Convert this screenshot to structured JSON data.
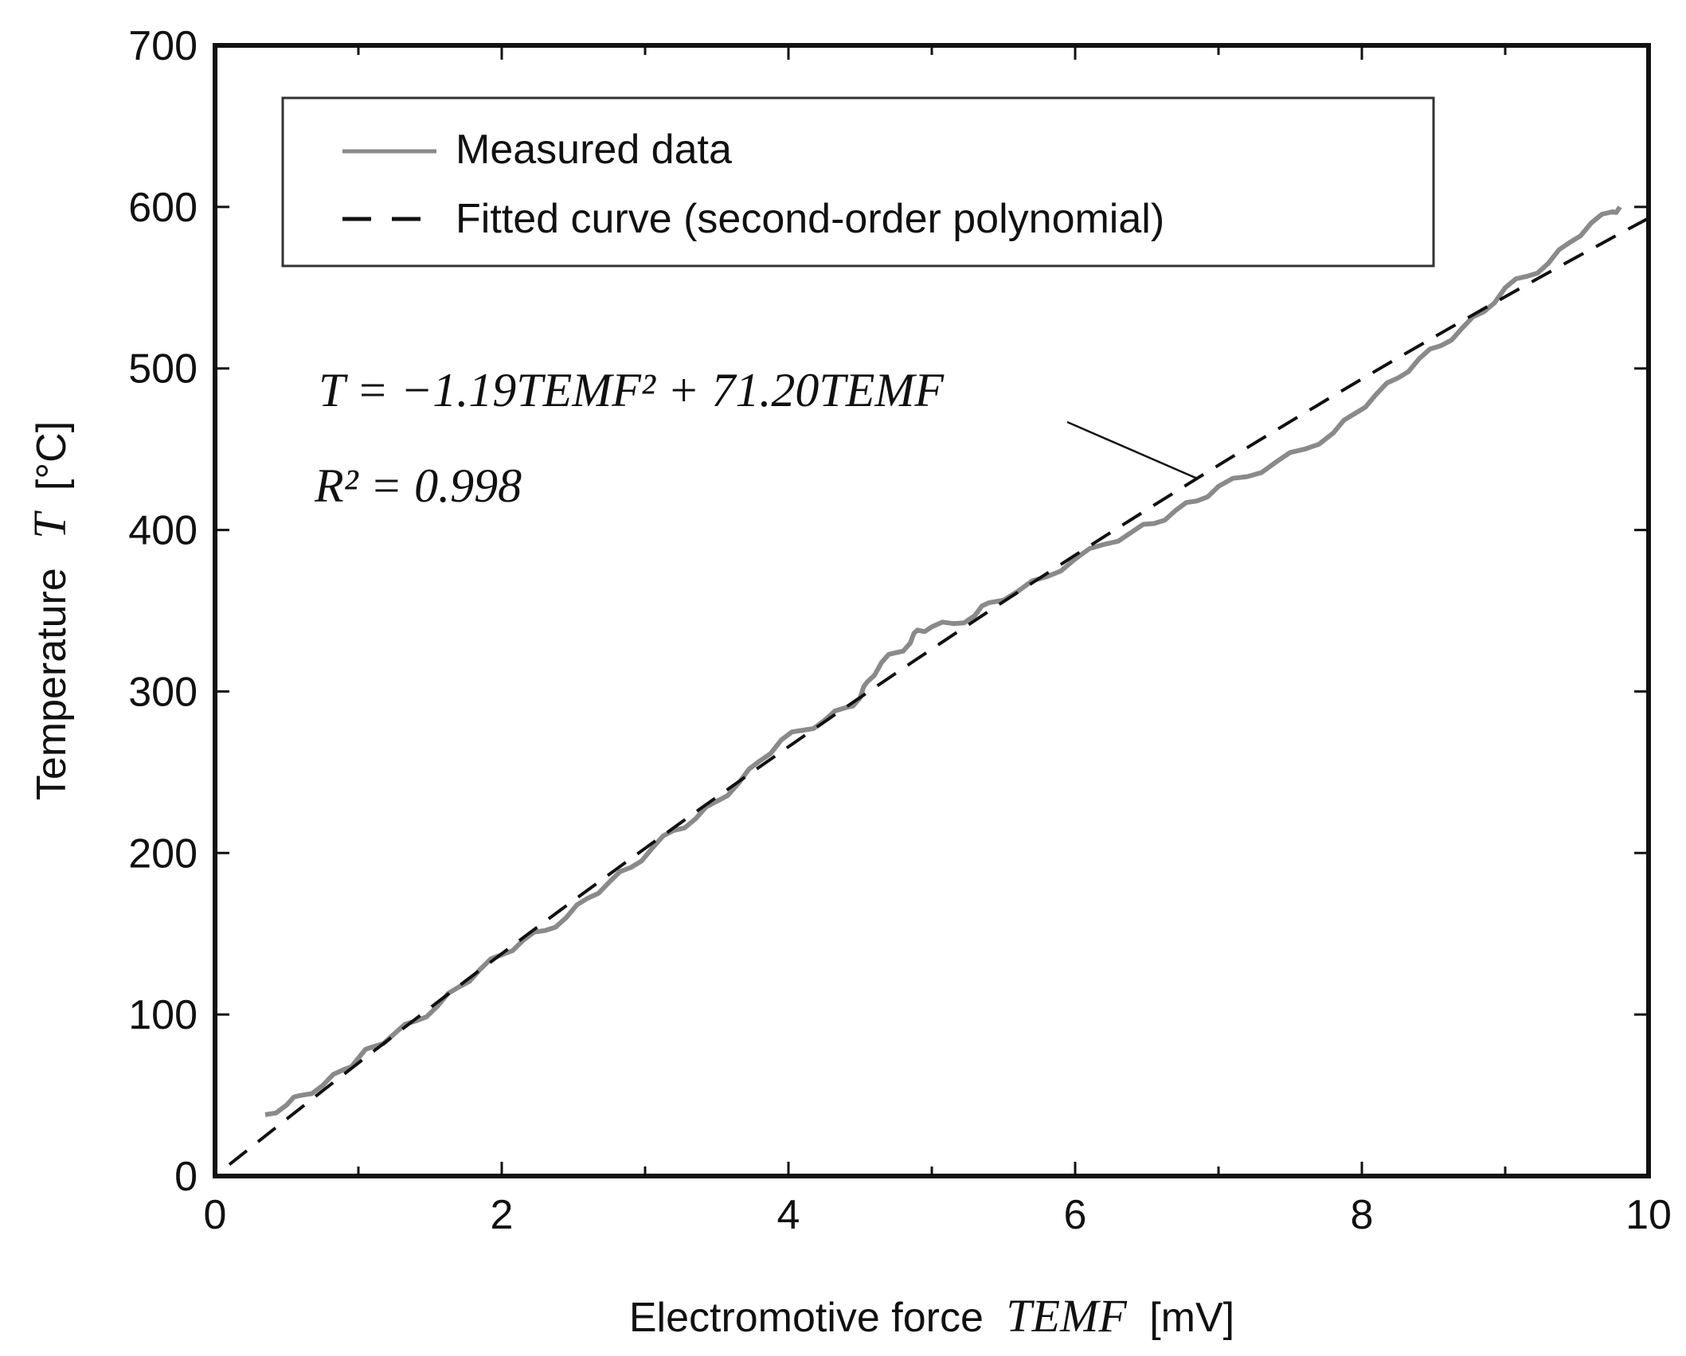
{
  "chart_data": {
    "type": "line",
    "title": "",
    "xlabel_prefix": "Electromotive force",
    "xlabel_var": "TEMF",
    "xlabel_unit": "[mV]",
    "ylabel_prefix": "Temperature",
    "ylabel_var": "T",
    "ylabel_unit": "[°C]",
    "xlim": [
      0,
      10
    ],
    "ylim": [
      0,
      700
    ],
    "xticks": [
      0,
      2,
      4,
      6,
      8,
      10
    ],
    "yticks": [
      0,
      100,
      200,
      300,
      400,
      500,
      600,
      700
    ],
    "grid": false,
    "legend_position": "top-left",
    "series": [
      {
        "name": "Measured data",
        "style": "solid",
        "color": "#8a8a8a",
        "points": [
          [
            0.35,
            38
          ],
          [
            0.5,
            44
          ],
          [
            0.6,
            50
          ],
          [
            0.75,
            56
          ],
          [
            0.9,
            66
          ],
          [
            1.0,
            73
          ],
          [
            1.1,
            80
          ],
          [
            1.25,
            88
          ],
          [
            1.4,
            96
          ],
          [
            1.55,
            105
          ],
          [
            1.7,
            117
          ],
          [
            1.85,
            128
          ],
          [
            2.0,
            137
          ],
          [
            2.15,
            146
          ],
          [
            2.3,
            152
          ],
          [
            2.45,
            160
          ],
          [
            2.6,
            172
          ],
          [
            2.75,
            182
          ],
          [
            2.9,
            191
          ],
          [
            3.05,
            203
          ],
          [
            3.2,
            214
          ],
          [
            3.35,
            221
          ],
          [
            3.5,
            232
          ],
          [
            3.65,
            243
          ],
          [
            3.8,
            257
          ],
          [
            3.95,
            270
          ],
          [
            4.1,
            276
          ],
          [
            4.25,
            282
          ],
          [
            4.4,
            290
          ],
          [
            4.5,
            296
          ],
          [
            4.55,
            306
          ],
          [
            4.65,
            318
          ],
          [
            4.75,
            324
          ],
          [
            4.85,
            330
          ],
          [
            4.9,
            338
          ],
          [
            5.0,
            340
          ],
          [
            5.15,
            342
          ],
          [
            5.3,
            347
          ],
          [
            5.4,
            355
          ],
          [
            5.6,
            362
          ],
          [
            5.8,
            371
          ],
          [
            6.0,
            382
          ],
          [
            6.2,
            391
          ],
          [
            6.4,
            399
          ],
          [
            6.55,
            404
          ],
          [
            6.7,
            412
          ],
          [
            6.85,
            418
          ],
          [
            7.0,
            427
          ],
          [
            7.2,
            433
          ],
          [
            7.4,
            442
          ],
          [
            7.6,
            450
          ],
          [
            7.8,
            460
          ],
          [
            7.95,
            472
          ],
          [
            8.1,
            484
          ],
          [
            8.25,
            494
          ],
          [
            8.4,
            506
          ],
          [
            8.55,
            514
          ],
          [
            8.7,
            525
          ],
          [
            8.85,
            535
          ],
          [
            9.0,
            550
          ],
          [
            9.15,
            557
          ],
          [
            9.3,
            565
          ],
          [
            9.45,
            578
          ],
          [
            9.6,
            590
          ],
          [
            9.75,
            597
          ],
          [
            9.8,
            600
          ]
        ]
      },
      {
        "name": "Fitted curve (second-order polynomial)",
        "style": "dashed",
        "color": "#111111",
        "equation": {
          "a2": -1.19,
          "a1": 71.2,
          "a0": 0
        },
        "x_range": [
          0.1,
          10.0
        ]
      }
    ],
    "annotation": {
      "equation_text": "T = −1.19TEMF² + 71.20TEMF",
      "r2_text": "R² = 0.998",
      "points_to_x": 6.85
    }
  }
}
